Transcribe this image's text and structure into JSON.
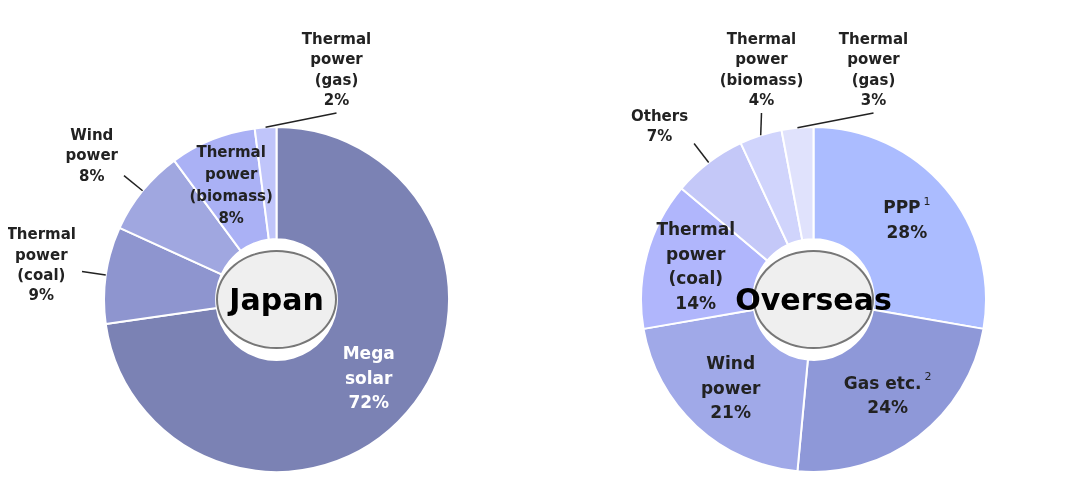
{
  "chart_data": [
    {
      "type": "donut",
      "title": "Japan",
      "categories": [
        "Mega solar",
        "Thermal power (coal)",
        "Wind power",
        "Thermal power (biomass)",
        "Thermal power (gas)"
      ],
      "values": [
        72,
        9,
        8,
        8,
        2
      ],
      "value_labels": [
        "72%",
        "9%",
        "8%",
        "8%",
        "2%"
      ],
      "colors": [
        "#7b82b4",
        "#8e95cf",
        "#a0a7e0",
        "#aab1f5",
        "#c0c5fa"
      ],
      "legend": false
    },
    {
      "type": "donut",
      "title": "Overseas",
      "categories": [
        "PPP$^{1}$",
        "Gas etc.$^{2}$",
        "Wind power",
        "Thermal power (coal)",
        "Others",
        "Thermal power (biomass)",
        "Thermal power (gas)"
      ],
      "values": [
        28,
        24,
        21,
        14,
        7,
        4,
        3
      ],
      "value_labels": [
        "28%",
        "24%",
        "21%",
        "14%",
        "7%",
        "4%",
        "3%"
      ],
      "colors": [
        "#abbcff",
        "#8e98d8",
        "#a0a9e8",
        "#b0b6fc",
        "#c4c8f8",
        "#d0d4fc",
        "#e0e2fc"
      ],
      "legend": false
    }
  ]
}
